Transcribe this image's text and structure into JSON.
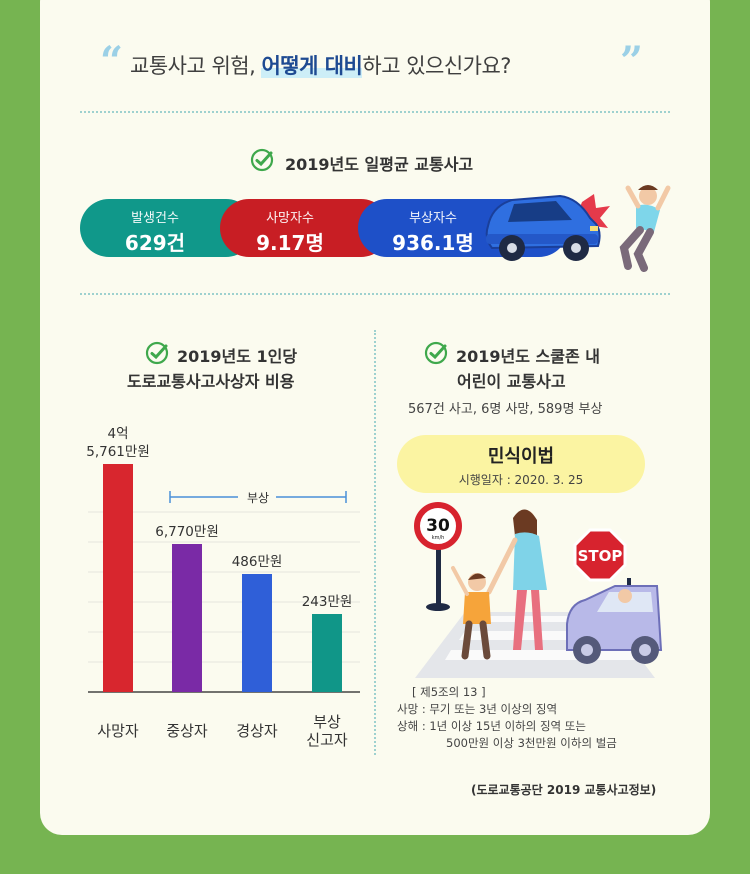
{
  "header": {
    "before": "교통사고 위험, ",
    "highlight": "어떻게 대비",
    "after": "하고 있으신가요?"
  },
  "daily": {
    "title": "2019년도 일평균 교통사고",
    "items": [
      {
        "label": "발생건수",
        "value": "629건",
        "color": "#10988a"
      },
      {
        "label": "사망자수",
        "value": "9.17명",
        "color": "#c81e24"
      },
      {
        "label": "부상자수",
        "value": "936.1명",
        "color": "#1e50c8"
      }
    ]
  },
  "cost": {
    "title_line1": "2019년도 1인당",
    "title_line2": "도로교통사고사상자 비용",
    "bracket_label": "부상"
  },
  "chart_data": {
    "type": "bar",
    "title": "2019년도 1인당 도로교통사고사상자 비용",
    "categories": [
      "사망자",
      "중상자",
      "경상자",
      "부상 신고자"
    ],
    "values": [
      45761,
      6770,
      486,
      243
    ],
    "value_labels": [
      "4억 5,761만원",
      "6,770만원",
      "486만원",
      "243만원"
    ],
    "unit": "만원",
    "bar_colors": [
      "#d8262e",
      "#7a2aa6",
      "#2f5fd8",
      "#109688"
    ],
    "axis_break": true,
    "grid": true
  },
  "school": {
    "title_line1": "2019년도 스쿨존 내",
    "title_line2": "어린이 교통사고",
    "summary": "567건 사고, 6명 사망, 589명 부상",
    "law_title": "민식이법",
    "law_date": "시행일자 : 2020. 3. 25",
    "sign_number": "30",
    "sign_unit": "km/h",
    "stop_sign": "STOP",
    "notes": [
      "[ 제5조의 13 ]",
      "사망 : 무기 또는 3년 이상의 징역",
      "상해 : 1년 이상 15년 이하의 징역 또는",
      "500만원 이상 3천만원 이하의 벌금"
    ]
  },
  "source": "(도로교통공단 2019 교통사고정보)",
  "colors": {
    "background": "#76b451",
    "card": "#fbfbef",
    "check": "#3fa84c"
  }
}
